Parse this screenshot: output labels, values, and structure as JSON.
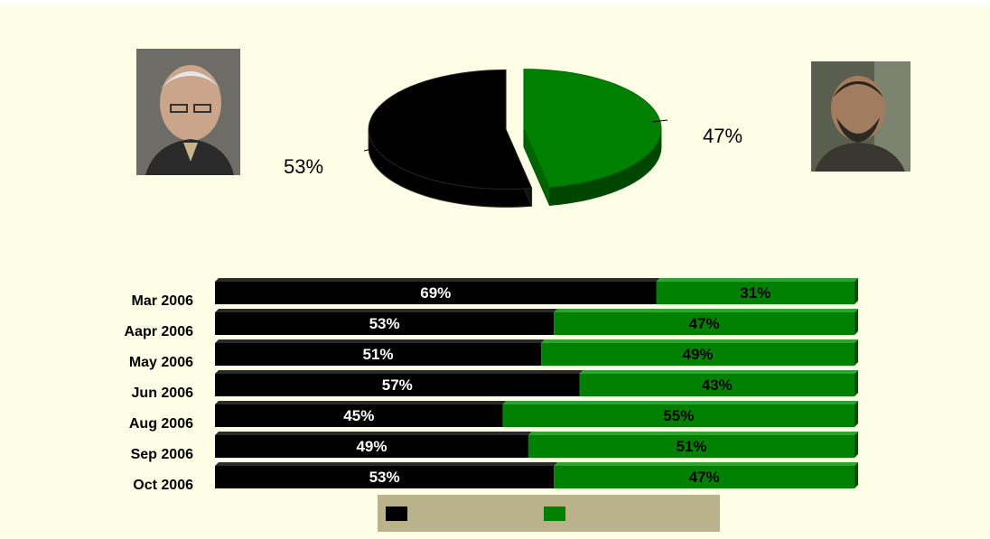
{
  "colors": {
    "abbas": "#000000",
    "haniyeh": "#008000",
    "background": "#fefee6",
    "legend_bg": "#b9b28a"
  },
  "photos": {
    "left": {
      "icon": "portrait-photo-abbas"
    },
    "right": {
      "icon": "portrait-photo-haniyeh"
    }
  },
  "chart_data": [
    {
      "type": "pie",
      "slices": [
        {
          "label": "53%",
          "value": 53,
          "color": "#000000"
        },
        {
          "label": "47%",
          "value": 47,
          "color": "#008000"
        }
      ]
    },
    {
      "type": "bar",
      "stacked": true,
      "orientation": "horizontal",
      "categories": [
        "Mar 2006",
        "Aapr 2006",
        "May 2006",
        "Jun 2006",
        "Aug 2006",
        "Sep 2006",
        "Oct 2006"
      ],
      "series": [
        {
          "values": [
            69,
            53,
            51,
            57,
            45,
            49,
            53
          ],
          "labels": [
            "69%",
            "53%",
            "51%",
            "57%",
            "45%",
            "49%",
            "53%"
          ],
          "color": "#000000"
        },
        {
          "values": [
            31,
            47,
            49,
            43,
            55,
            51,
            47
          ],
          "labels": [
            "31%",
            "47%",
            "49%",
            "43%",
            "55%",
            "51%",
            "47%"
          ],
          "color": "#008000"
        }
      ],
      "xlim": [
        0,
        100
      ],
      "legend": "bottom-center"
    }
  ]
}
